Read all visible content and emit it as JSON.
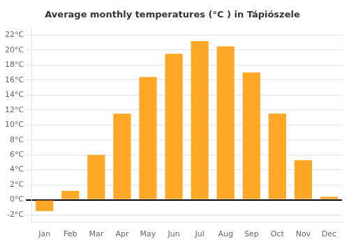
{
  "chart_data": {
    "type": "bar",
    "title": "Average monthly temperatures (°C ) in Tápiószele",
    "categories": [
      "Jan",
      "Feb",
      "Mar",
      "Apr",
      "May",
      "Jun",
      "Jul",
      "Aug",
      "Sep",
      "Oct",
      "Nov",
      "Dec"
    ],
    "values": [
      -1.5,
      1.2,
      6.0,
      11.5,
      16.4,
      19.5,
      21.2,
      20.5,
      17.0,
      11.5,
      5.3,
      0.4
    ],
    "color": "#FFA726",
    "ylim": [
      -3,
      23
    ],
    "yticks": [
      {
        "value": -2,
        "label": "-2°C"
      },
      {
        "value": 0,
        "label": "0°C"
      },
      {
        "value": 2,
        "label": "2°C"
      },
      {
        "value": 4,
        "label": "4°C"
      },
      {
        "value": 6,
        "label": "6°C"
      },
      {
        "value": 8,
        "label": "8°C"
      },
      {
        "value": 10,
        "label": "10°C"
      },
      {
        "value": 12,
        "label": "12°C"
      },
      {
        "value": 14,
        "label": "14°C"
      },
      {
        "value": 16,
        "label": "16°C"
      },
      {
        "value": 18,
        "label": "18°C"
      },
      {
        "value": 20,
        "label": "20°C"
      },
      {
        "value": 22,
        "label": "22°C"
      }
    ],
    "grid": true
  }
}
